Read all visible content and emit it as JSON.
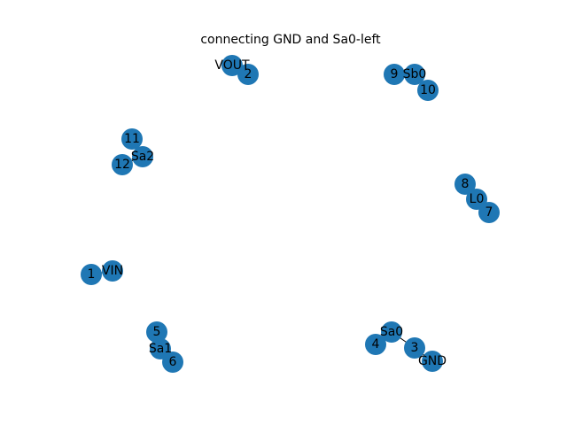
{
  "title": "connecting GND and Sa0-left",
  "node_color": "#1f77b4",
  "edge_color": "#000000",
  "nodes": [
    {
      "id": "VOUT",
      "label": "VOUT"
    },
    {
      "id": "2",
      "label": "2"
    },
    {
      "id": "9",
      "label": "9"
    },
    {
      "id": "Sb0",
      "label": "Sb0"
    },
    {
      "id": "10",
      "label": "10"
    },
    {
      "id": "11",
      "label": "11"
    },
    {
      "id": "Sa2",
      "label": "Sa2"
    },
    {
      "id": "12",
      "label": "12"
    },
    {
      "id": "8",
      "label": "8"
    },
    {
      "id": "L0",
      "label": "L0"
    },
    {
      "id": "7",
      "label": "7"
    },
    {
      "id": "1",
      "label": "1"
    },
    {
      "id": "VIN",
      "label": "VIN"
    },
    {
      "id": "5",
      "label": "5"
    },
    {
      "id": "Sa1",
      "label": "Sa1"
    },
    {
      "id": "6",
      "label": "6"
    },
    {
      "id": "Sa0",
      "label": "Sa0"
    },
    {
      "id": "4",
      "label": "4"
    },
    {
      "id": "3",
      "label": "3"
    },
    {
      "id": "GND",
      "label": "GND"
    }
  ],
  "edges": [
    [
      "VOUT",
      "2"
    ],
    [
      "9",
      "Sb0"
    ],
    [
      "Sb0",
      "10"
    ],
    [
      "11",
      "Sa2"
    ],
    [
      "Sa2",
      "12"
    ],
    [
      "8",
      "L0"
    ],
    [
      "L0",
      "7"
    ],
    [
      "1",
      "VIN"
    ],
    [
      "5",
      "Sa1"
    ],
    [
      "Sa1",
      "6"
    ],
    [
      "Sa0",
      "4"
    ],
    [
      "Sa0",
      "3"
    ],
    [
      "3",
      "GND"
    ]
  ]
}
